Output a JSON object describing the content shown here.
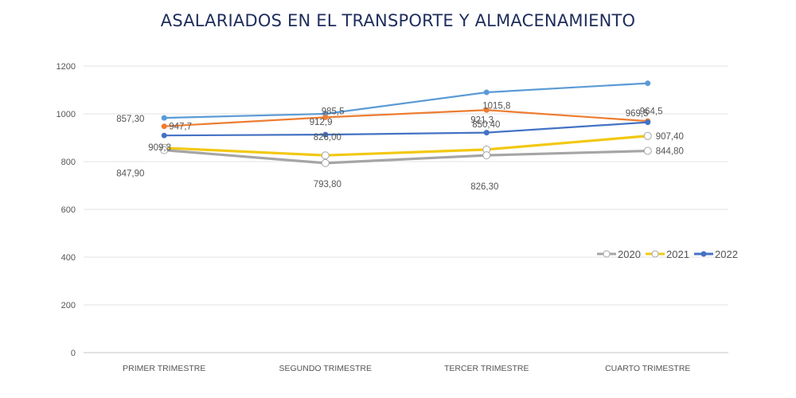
{
  "chart_data": {
    "type": "line",
    "title": "ASALARIADOS EN EL TRANSPORTE Y ALMACENAMIENTO",
    "xlabel": "",
    "ylabel": "",
    "categories": [
      "PRIMER TRIMESTRE",
      "SEGUNDO TRIMESTRE",
      "TERCER TRIMESTRE",
      "CUARTO TRIMESTRE"
    ],
    "ylim": [
      0,
      1200
    ],
    "yticks": [
      0,
      200,
      400,
      600,
      800,
      1000,
      1200
    ],
    "grid": true,
    "legend_position": "right",
    "series": [
      {
        "name": "",
        "color": "#5b9bd5",
        "marker": "filled",
        "values": [
          983,
          1000,
          1090,
          1128
        ],
        "labels": [
          "",
          "",
          "",
          ""
        ],
        "in_legend": false
      },
      {
        "name": "",
        "color": "#ed7d31",
        "marker": "filled",
        "values": [
          947.7,
          985.5,
          1015.8,
          969.5
        ],
        "labels": [
          "947,7",
          "985,5",
          "1015,8",
          "969,5"
        ],
        "in_legend": false
      },
      {
        "name": "2022",
        "color": "#4472c4",
        "marker": "filled",
        "values": [
          909.3,
          912.9,
          921.3,
          964.5
        ],
        "labels": [
          "909,3",
          "912,9",
          "921,3",
          "964,5"
        ],
        "in_legend": true
      },
      {
        "name": "2021",
        "color": "#f2c811",
        "marker": "hollow",
        "values": [
          857.3,
          826.0,
          850.4,
          907.4
        ],
        "labels": [
          "857,30",
          "826,00",
          "850,40",
          "907,40"
        ],
        "in_legend": true
      },
      {
        "name": "2020",
        "color": "#a5a5a5",
        "marker": "hollow",
        "values": [
          847.9,
          793.8,
          826.3,
          844.8
        ],
        "labels": [
          "847,90",
          "793,80",
          "826,30",
          "844,80"
        ],
        "in_legend": true
      }
    ]
  }
}
